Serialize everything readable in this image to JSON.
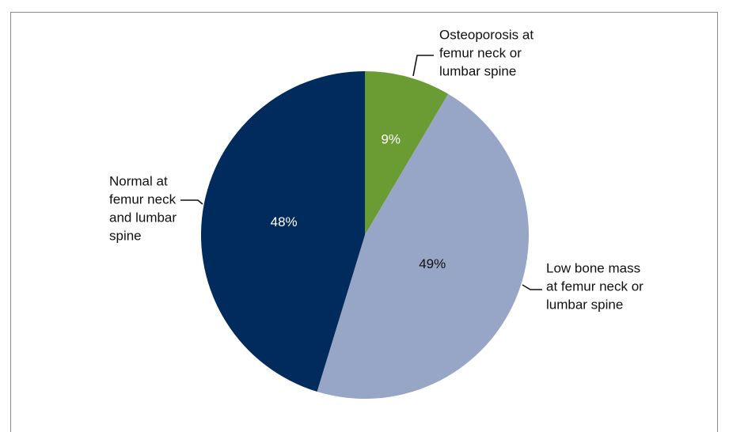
{
  "chart_data": {
    "type": "pie",
    "categories": [
      [
        "Osteoporosis at",
        "femur neck or",
        "lumbar spine"
      ],
      [
        "Low bone mass",
        "at femur neck or",
        "lumbar spine"
      ],
      [
        "Normal at",
        "femur neck",
        "and lumbar",
        "spine"
      ]
    ],
    "values": [
      9,
      49,
      48
    ],
    "value_labels": [
      "9%",
      "49%",
      "48%"
    ],
    "colors": [
      "#6b9b33",
      "#97a5c6",
      "#002b5c"
    ],
    "label_colors": [
      "#ffffff",
      "#111111",
      "#ffffff"
    ]
  }
}
